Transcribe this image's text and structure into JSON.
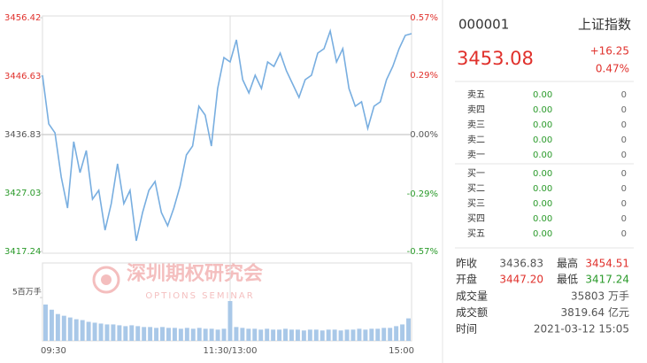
{
  "chart_data": [
    {
      "type": "line",
      "categories": [
        "09:30",
        null,
        null,
        null,
        null,
        null,
        null,
        null,
        null,
        null,
        null,
        null,
        null,
        null,
        null,
        null,
        null,
        null,
        null,
        null,
        null,
        null,
        null,
        null,
        null,
        null,
        null,
        null,
        null,
        null,
        "11:30/13:00",
        null,
        null,
        null,
        null,
        null,
        null,
        null,
        null,
        null,
        null,
        null,
        null,
        null,
        null,
        null,
        null,
        null,
        null,
        null,
        null,
        null,
        null,
        null,
        null,
        null,
        null,
        null,
        null,
        "15:00"
      ],
      "values": [
        3446.77,
        3438.61,
        3437.13,
        3429.71,
        3424.51,
        3435.64,
        3430.45,
        3434.16,
        3426.0,
        3427.48,
        3420.8,
        3425.26,
        3431.93,
        3425.26,
        3427.48,
        3419.02,
        3423.77,
        3427.48,
        3428.97,
        3423.77,
        3421.55,
        3424.51,
        3428.22,
        3433.42,
        3434.9,
        3441.58,
        3440.1,
        3434.9,
        3444.55,
        3449.74,
        3449.0,
        3452.71,
        3446.03,
        3443.81,
        3446.77,
        3444.55,
        3449.0,
        3448.26,
        3450.48,
        3447.52,
        3445.29,
        3443.06,
        3446.03,
        3446.77,
        3450.48,
        3451.23,
        3454.19,
        3449.0,
        3451.23,
        3444.55,
        3441.58,
        3442.32,
        3437.87,
        3441.58,
        3442.32,
        3446.03,
        3448.26,
        3451.23,
        3453.45,
        3453.75
      ],
      "color": "#78aee0",
      "ylim": [
        3417.24,
        3456.42
      ],
      "yticks": [
        3456.42,
        3446.63,
        3436.83,
        3427.03,
        3417.24
      ],
      "y2lim": [
        -0.57,
        0.57
      ],
      "y2ticks": [
        {
          "value": 0.57,
          "label": "0.57%"
        },
        {
          "value": 0.29,
          "label": "0.29%"
        },
        {
          "value": 0,
          "label": "0.00%"
        },
        {
          "value": -0.29,
          "label": "-0.29%"
        },
        {
          "value": -0.57,
          "label": "-0.57%"
        }
      ]
    },
    {
      "type": "bar",
      "values": [
        4.2,
        3.6,
        3.1,
        2.9,
        2.7,
        2.5,
        2.4,
        2.2,
        2.1,
        2.0,
        1.9,
        1.9,
        1.8,
        1.7,
        1.8,
        1.7,
        1.6,
        1.6,
        1.5,
        1.6,
        1.5,
        1.5,
        1.4,
        1.5,
        1.4,
        1.5,
        1.4,
        1.4,
        1.3,
        1.4,
        4.6,
        1.6,
        1.5,
        1.4,
        1.4,
        1.3,
        1.4,
        1.3,
        1.3,
        1.4,
        1.3,
        1.3,
        1.2,
        1.3,
        1.3,
        1.2,
        1.3,
        1.3,
        1.2,
        1.3,
        1.3,
        1.4,
        1.3,
        1.4,
        1.4,
        1.5,
        1.5,
        1.7,
        1.9,
        2.6
      ],
      "color": "#a9c8e8",
      "ylim": [
        0,
        9
      ],
      "yticks": [
        {
          "value": 5,
          "label": "5百万手"
        }
      ]
    }
  ],
  "watermark": {
    "title": "深圳期权研究会",
    "subtitle": "OPTIONS SEMINAR"
  },
  "quote": {
    "code": "000001",
    "name": "上证指数",
    "price": "3453.08",
    "change": "+16.25",
    "change_pct": "0.47%",
    "asks": [
      [
        "卖五",
        "0.00",
        "0"
      ],
      [
        "卖四",
        "0.00",
        "0"
      ],
      [
        "卖三",
        "0.00",
        "0"
      ],
      [
        "卖二",
        "0.00",
        "0"
      ],
      [
        "卖一",
        "0.00",
        "0"
      ]
    ],
    "bids": [
      [
        "买一",
        "0.00",
        "0"
      ],
      [
        "买二",
        "0.00",
        "0"
      ],
      [
        "买三",
        "0.00",
        "0"
      ],
      [
        "买四",
        "0.00",
        "0"
      ],
      [
        "买五",
        "0.00",
        "0"
      ]
    ],
    "stats": [
      [
        "昨收",
        "3436.83",
        "最高",
        "3454.51"
      ],
      [
        "开盘",
        "3447.20",
        "最低",
        "3417.24"
      ]
    ],
    "totals": [
      [
        "成交量",
        "35803 万手"
      ],
      [
        "成交额",
        "3819.64 亿元"
      ],
      [
        "时间",
        "2021-03-12 15:05"
      ]
    ]
  }
}
